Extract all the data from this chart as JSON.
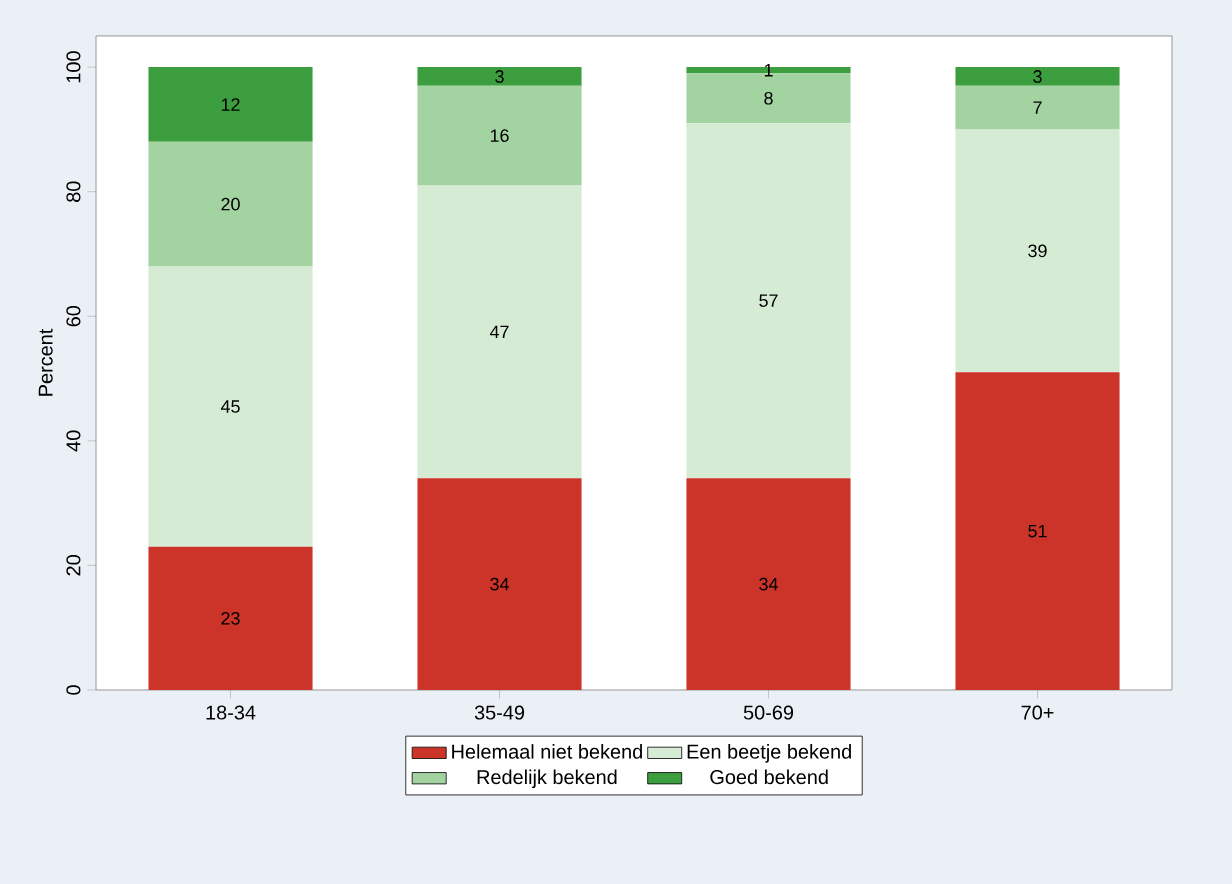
{
  "chart_data": {
    "type": "bar",
    "stacked": true,
    "ylabel": "Percent",
    "categories": [
      "18-34",
      "35-49",
      "50-69",
      "70+"
    ],
    "series": [
      {
        "name": "Helemaal niet bekend",
        "color": "#cc3329",
        "values": [
          23,
          34,
          34,
          51
        ]
      },
      {
        "name": "Een beetje bekend",
        "color": "#d5ebd3",
        "values": [
          45,
          47,
          57,
          39
        ]
      },
      {
        "name": "Redelijk bekend",
        "color": "#a2d3a0",
        "values": [
          20,
          16,
          8,
          7
        ]
      },
      {
        "name": "Goed bekend",
        "color": "#3d9e3f",
        "values": [
          12,
          3,
          1,
          3
        ]
      }
    ],
    "ylim": [
      0,
      105
    ],
    "yticks": [
      0,
      20,
      40,
      60,
      80,
      100
    ],
    "data_labels": true,
    "legend": "bottom",
    "grid": false
  }
}
